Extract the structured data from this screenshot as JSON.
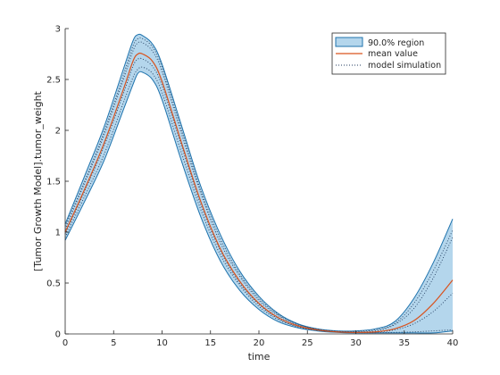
{
  "chart_data": {
    "type": "area",
    "title": "",
    "xlabel": "time",
    "ylabel": "[Tumor Growth Model].tumor_weight",
    "xlim": [
      0,
      40
    ],
    "ylim": [
      0,
      3
    ],
    "xticks": [
      0,
      5,
      10,
      15,
      20,
      25,
      30,
      35,
      40
    ],
    "yticks": [
      0,
      0.5,
      1,
      1.5,
      2,
      2.5,
      3
    ],
    "grid": false,
    "legend_position": "top-right",
    "legend": [
      "90.0% region",
      "mean value",
      "model simulation"
    ],
    "colors": {
      "region_fill": "#b4d6ec",
      "region_edge": "#1f73ad",
      "mean": "#d9531e",
      "simulation": "#1f3a5c"
    },
    "x": [
      0,
      2,
      4,
      6,
      7,
      7.5,
      8,
      9,
      10,
      12,
      14,
      16,
      18,
      20,
      22,
      24,
      26,
      28,
      30,
      32,
      34,
      36,
      38,
      40
    ],
    "series": [
      {
        "name": "90.0% region",
        "role": "band",
        "lower": [
          0.92,
          1.3,
          1.7,
          2.2,
          2.45,
          2.56,
          2.57,
          2.5,
          2.3,
          1.7,
          1.15,
          0.72,
          0.43,
          0.24,
          0.12,
          0.06,
          0.03,
          0.015,
          0.01,
          0.01,
          0.01,
          0.01,
          0.01,
          0.03
        ],
        "upper": [
          1.08,
          1.55,
          2.03,
          2.6,
          2.88,
          2.94,
          2.93,
          2.85,
          2.65,
          2.05,
          1.45,
          0.98,
          0.62,
          0.37,
          0.2,
          0.1,
          0.05,
          0.03,
          0.03,
          0.05,
          0.12,
          0.35,
          0.7,
          1.13
        ]
      },
      {
        "name": "mean value",
        "role": "mean",
        "values": [
          1.0,
          1.42,
          1.87,
          2.4,
          2.68,
          2.75,
          2.75,
          2.68,
          2.48,
          1.88,
          1.3,
          0.84,
          0.52,
          0.3,
          0.16,
          0.08,
          0.04,
          0.02,
          0.015,
          0.02,
          0.05,
          0.13,
          0.3,
          0.53
        ]
      },
      {
        "name": "model simulation",
        "role": "simulations",
        "runs": [
          [
            0.95,
            1.35,
            1.76,
            2.27,
            2.52,
            2.6,
            2.62,
            2.56,
            2.37,
            1.78,
            1.22,
            0.78,
            0.48,
            0.27,
            0.14,
            0.07,
            0.035,
            0.02,
            0.012,
            0.012,
            0.015,
            0.02,
            0.03,
            0.04
          ],
          [
            1.03,
            1.48,
            1.95,
            2.5,
            2.78,
            2.86,
            2.86,
            2.78,
            2.58,
            1.97,
            1.38,
            0.9,
            0.57,
            0.33,
            0.18,
            0.09,
            0.045,
            0.025,
            0.02,
            0.03,
            0.09,
            0.25,
            0.55,
            0.95
          ],
          [
            0.98,
            1.4,
            1.84,
            2.36,
            2.63,
            2.7,
            2.7,
            2.63,
            2.44,
            1.85,
            1.27,
            0.82,
            0.5,
            0.29,
            0.15,
            0.075,
            0.037,
            0.02,
            0.014,
            0.018,
            0.04,
            0.1,
            0.22,
            0.4
          ],
          [
            1.06,
            1.5,
            1.98,
            2.54,
            2.83,
            2.9,
            2.9,
            2.82,
            2.62,
            2.01,
            1.41,
            0.94,
            0.59,
            0.35,
            0.19,
            0.095,
            0.048,
            0.027,
            0.025,
            0.04,
            0.1,
            0.3,
            0.62,
            1.02
          ]
        ]
      }
    ]
  }
}
